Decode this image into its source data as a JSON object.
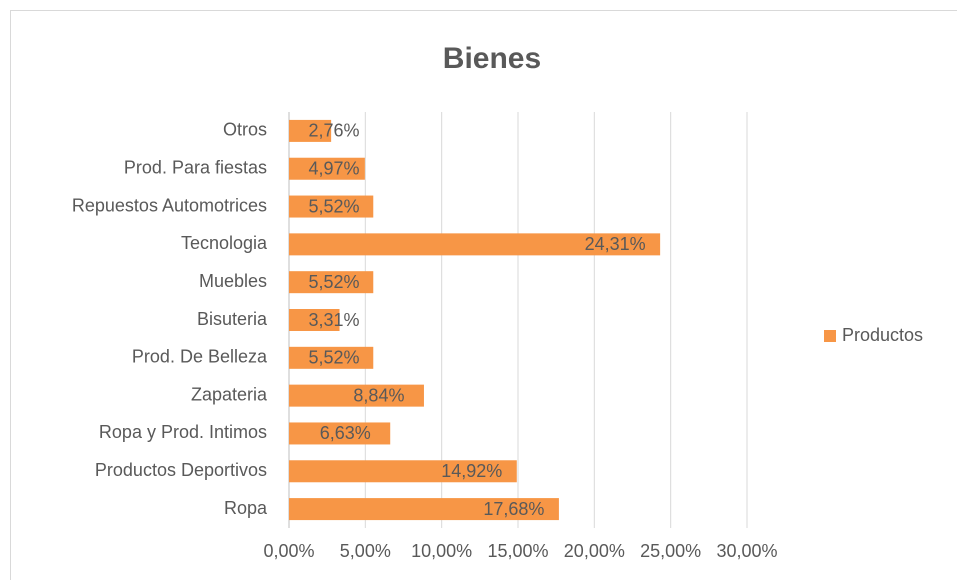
{
  "chart_data": {
    "type": "hbar",
    "title": "Bienes",
    "categories": [
      "Ropa",
      "Productos Deportivos",
      "Ropa y Prod. Intimos",
      "Zapateria",
      "Prod. De Belleza",
      "Bisuteria",
      "Muebles",
      "Tecnologia",
      "Repuestos Automotrices",
      "Prod. Para fiestas",
      "Otros"
    ],
    "series": [
      {
        "name": "Productos",
        "color": "#f79646",
        "values": [
          17.68,
          14.92,
          6.63,
          8.84,
          5.52,
          3.31,
          5.52,
          24.31,
          5.52,
          4.97,
          2.76
        ],
        "value_labels": [
          "17,68%",
          "14,92%",
          "6,63%",
          "8,84%",
          "5,52%",
          "3,31%",
          "5,52%",
          "24,31%",
          "5,52%",
          "4,97%",
          "2,76%"
        ]
      }
    ],
    "xlim": [
      0,
      30
    ],
    "xticks": [
      {
        "value": 0,
        "label": "0,00%"
      },
      {
        "value": 5,
        "label": "5,00%"
      },
      {
        "value": 10,
        "label": "10,00%"
      },
      {
        "value": 15,
        "label": "15,00%"
      },
      {
        "value": 20,
        "label": "20,00%"
      },
      {
        "value": 25,
        "label": "25,00%"
      },
      {
        "value": 30,
        "label": "30,00%"
      }
    ],
    "grid": true,
    "legend": "right"
  }
}
